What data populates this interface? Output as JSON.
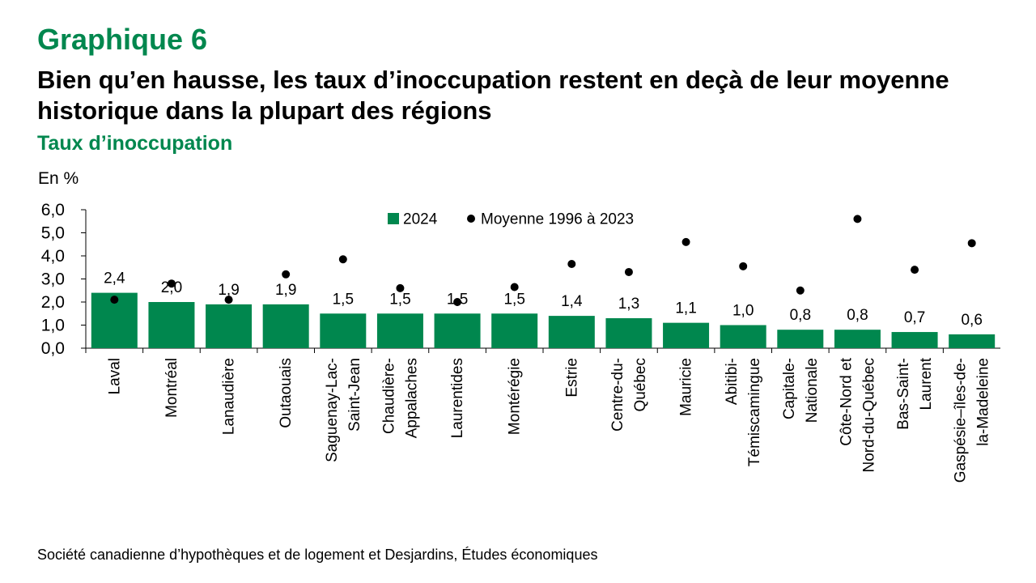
{
  "header": {
    "figure_number": "Graphique 6",
    "title": "Bien qu’en hausse, les taux d’inoccupation restent en deçà de leur moyenne historique dans la plupart des régions",
    "subtitle": "Taux d’inoccupation"
  },
  "source": "Société canadienne d’hypothèques et de logement et Desjardins, Études économiques",
  "colors": {
    "bar": "#00874E",
    "dot": "#000000",
    "accent": "#00874E"
  },
  "chart_data": {
    "type": "bar",
    "unit_label": "En %",
    "ylim": [
      0,
      6
    ],
    "yticks": [
      "0,0",
      "1,0",
      "2,0",
      "3,0",
      "4,0",
      "5,0",
      "6,0"
    ],
    "grid": false,
    "legend_position": "top-center",
    "categories": [
      [
        "Laval"
      ],
      [
        "Montréal"
      ],
      [
        "Lanaudière"
      ],
      [
        "Outaouais"
      ],
      [
        "Saguenay-Lac-",
        "Saint-Jean"
      ],
      [
        "Chaudière-",
        "Appalaches"
      ],
      [
        "Laurentides"
      ],
      [
        "Montérégie"
      ],
      [
        "Estrie"
      ],
      [
        "Centre-du-",
        "Québec"
      ],
      [
        "Mauricie"
      ],
      [
        "Abitibi-",
        "Témiscamingue"
      ],
      [
        "Capitale-",
        "Nationale"
      ],
      [
        "Côte-Nord et",
        "Nord-du-Québec"
      ],
      [
        "Bas-Saint-",
        "Laurent"
      ],
      [
        "Gaspésie–îles-de-",
        "la-Madeleine"
      ]
    ],
    "series": [
      {
        "name": "2024",
        "kind": "bar",
        "values": [
          2.4,
          2.0,
          1.9,
          1.9,
          1.5,
          1.5,
          1.5,
          1.5,
          1.4,
          1.3,
          1.1,
          1.0,
          0.8,
          0.8,
          0.7,
          0.6
        ],
        "labels": [
          "2,4",
          "2,0",
          "1,9",
          "1,9",
          "1,5",
          "1,5",
          "1,5",
          "1,5",
          "1,4",
          "1,3",
          "1,1",
          "1,0",
          "0,8",
          "0,8",
          "0,7",
          "0,6"
        ]
      },
      {
        "name": "Moyenne 1996 à 2023",
        "kind": "dot",
        "values": [
          2.1,
          2.8,
          2.1,
          3.2,
          3.85,
          2.6,
          2.0,
          2.65,
          3.65,
          3.3,
          4.6,
          3.55,
          2.5,
          5.6,
          3.4,
          4.55
        ]
      }
    ]
  }
}
